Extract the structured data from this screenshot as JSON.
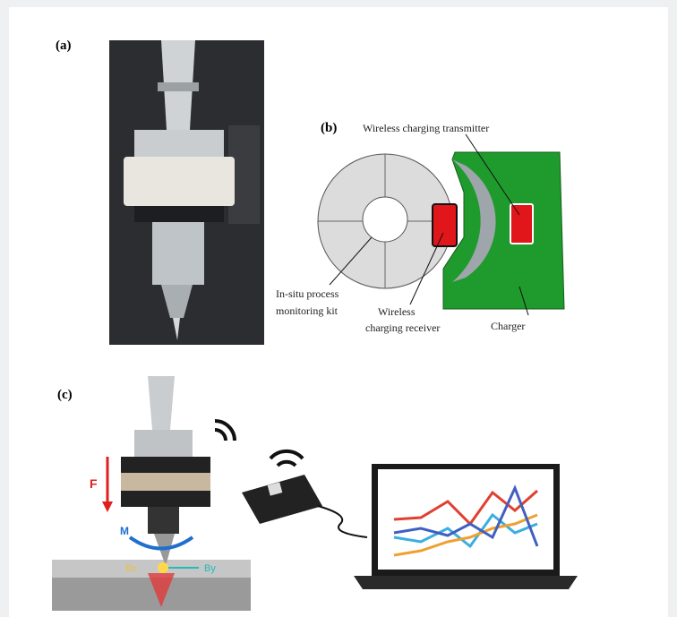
{
  "panels": {
    "a": {
      "label": "(a)"
    },
    "b": {
      "label": "(b)",
      "transmitter": "Wireless charging transmitter",
      "kit": [
        "In-situ  process",
        "monitoring kit"
      ],
      "receiver": [
        "Wireless",
        "charging receiver"
      ],
      "charger": "Charger"
    },
    "c": {
      "label": "(c)",
      "force": "F",
      "moment": "M",
      "bx": "Bx",
      "by": "By"
    }
  }
}
